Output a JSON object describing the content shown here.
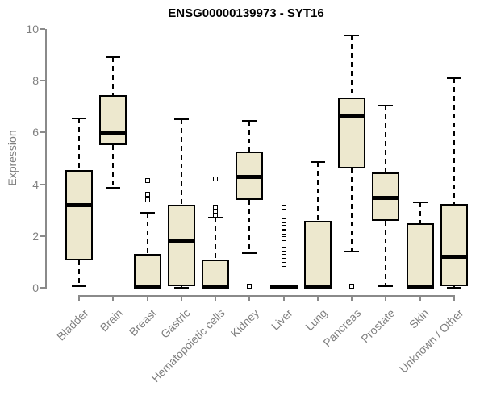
{
  "title": "ENSG00000139973 - SYT16",
  "ylabel": "Expression",
  "colors": {
    "box_fill": "#EDE8CE",
    "box_stroke": "#000000",
    "axis": "#8a8a8a",
    "axis_text": "#7f7f7f",
    "title_text": "#000000",
    "background": "#ffffff"
  },
  "chart_data": {
    "type": "boxplot",
    "title": "ENSG00000139973 - SYT16",
    "xlabel": "",
    "ylabel": "Expression",
    "ylim": [
      0,
      10
    ],
    "yticks": [
      0,
      2,
      4,
      6,
      8,
      10
    ],
    "grid": false,
    "categories": [
      "Bladder",
      "Brain",
      "Breast",
      "Gastric",
      "Hematopoietic cells",
      "Kidney",
      "Liver",
      "Lung",
      "Pancreas",
      "Prostate",
      "Skin",
      "Unknown / Other"
    ],
    "series": [
      {
        "name": "Bladder",
        "whisker_low": 0.05,
        "q1": 1.05,
        "median": 3.2,
        "q3": 4.55,
        "whisker_high": 6.55,
        "outliers": []
      },
      {
        "name": "Brain",
        "whisker_low": 3.85,
        "q1": 5.5,
        "median": 6.0,
        "q3": 7.45,
        "whisker_high": 8.9,
        "outliers": []
      },
      {
        "name": "Breast",
        "whisker_low": 0.0,
        "q1": 0.0,
        "median": 0.05,
        "q3": 1.3,
        "whisker_high": 2.9,
        "outliers": [
          4.15,
          3.6,
          3.4
        ]
      },
      {
        "name": "Gastric",
        "whisker_low": 0.0,
        "q1": 0.05,
        "median": 1.8,
        "q3": 3.2,
        "whisker_high": 6.5,
        "outliers": []
      },
      {
        "name": "Hematopoietic cells",
        "whisker_low": 0.0,
        "q1": 0.0,
        "median": 0.05,
        "q3": 1.1,
        "whisker_high": 2.7,
        "outliers": [
          4.2,
          3.1,
          2.95,
          2.8
        ]
      },
      {
        "name": "Kidney",
        "whisker_low": 1.35,
        "q1": 3.4,
        "median": 4.3,
        "q3": 5.25,
        "whisker_high": 6.45,
        "outliers": [
          0.05
        ]
      },
      {
        "name": "Liver",
        "whisker_low": 0.05,
        "q1": 0.05,
        "median": 0.05,
        "q3": 0.05,
        "whisker_high": 0.05,
        "outliers": [
          3.1,
          2.6,
          2.35,
          2.15,
          2.0,
          1.9,
          1.65,
          1.45,
          1.3,
          1.2,
          0.9
        ]
      },
      {
        "name": "Lung",
        "whisker_low": 0.0,
        "q1": 0.0,
        "median": 0.05,
        "q3": 2.6,
        "whisker_high": 4.85,
        "outliers": []
      },
      {
        "name": "Pancreas",
        "whisker_low": 1.4,
        "q1": 4.6,
        "median": 6.65,
        "q3": 7.35,
        "whisker_high": 9.75,
        "outliers": [
          0.05
        ]
      },
      {
        "name": "Prostate",
        "whisker_low": 0.05,
        "q1": 2.6,
        "median": 3.5,
        "q3": 4.45,
        "whisker_high": 7.05,
        "outliers": []
      },
      {
        "name": "Skin",
        "whisker_low": 0.0,
        "q1": 0.0,
        "median": 0.05,
        "q3": 2.5,
        "whisker_high": 3.3,
        "outliers": []
      },
      {
        "name": "Unknown / Other",
        "whisker_low": 0.0,
        "q1": 0.05,
        "median": 1.2,
        "q3": 3.25,
        "whisker_high": 8.1,
        "outliers": []
      }
    ]
  }
}
